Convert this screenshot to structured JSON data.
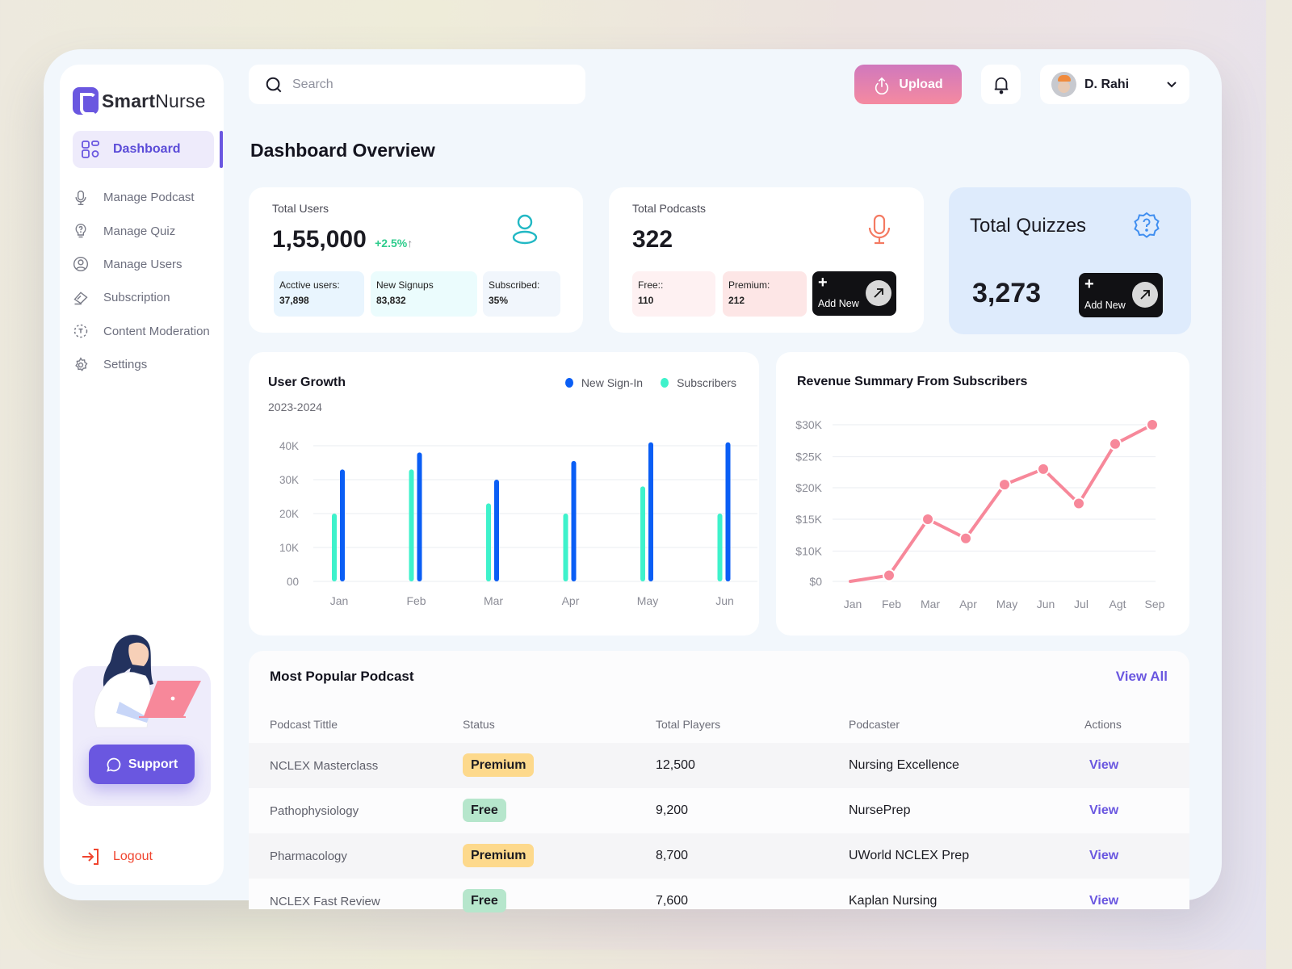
{
  "app": {
    "brand_bold": "Smart",
    "brand_light": "Nurse"
  },
  "sidebar": {
    "active": {
      "label": "Dashboard",
      "icon": "grid-icon"
    },
    "items": [
      {
        "label": "Manage Podcast",
        "icon": "microphone-icon"
      },
      {
        "label": "Manage Quiz",
        "icon": "lightbulb-question-icon"
      },
      {
        "label": "Manage Users",
        "icon": "user-circle-icon"
      },
      {
        "label": "Subscription",
        "icon": "ticket-icon"
      },
      {
        "label": "Content Moderation",
        "icon": "moderation-icon"
      },
      {
        "label": "Settings",
        "icon": "gear-icon"
      }
    ],
    "support_label": "Support",
    "logout_label": "Logout"
  },
  "header": {
    "search_placeholder": "Search",
    "upload_label": "Upload",
    "user_name": "D. Rahi"
  },
  "page": {
    "title": "Dashboard Overview"
  },
  "stats": {
    "users": {
      "label": "Total Users",
      "value": "1,55,000",
      "trend": "+2.5%",
      "trend_arrow": "↑",
      "breakdown": [
        {
          "label": "Acctive users:",
          "value": "37,898",
          "color": "#e9f5fe"
        },
        {
          "label": "New Signups",
          "value": "83,832",
          "color": "#ebfcfd"
        },
        {
          "label": "Subscribed:",
          "value": "35%",
          "color": "#f1f6fc"
        }
      ]
    },
    "podcasts": {
      "label": "Total Podcasts",
      "value": "322",
      "breakdown": [
        {
          "label": "Free::",
          "value": "110",
          "color": "#fef1f2"
        },
        {
          "label": "Premium:",
          "value": "212",
          "color": "#fde6e6"
        }
      ],
      "add_label": "Add New"
    },
    "quizzes": {
      "label": "Total Quizzes",
      "value": "3,273",
      "add_label": "Add New"
    }
  },
  "colors": {
    "accent": "#6a57e0",
    "new_signin": "#0a5ef5",
    "subscribers": "#3ef2cb",
    "revenue_line": "#f7889a",
    "logout": "#f0452f"
  },
  "chart_data": [
    {
      "type": "bar",
      "title": "User Growth",
      "subtitle": "2023-2024",
      "categories": [
        "Jan",
        "Feb",
        "Mar",
        "Apr",
        "May",
        "Jun"
      ],
      "series": [
        {
          "name": "Subscribers",
          "values": [
            20000,
            33000,
            23000,
            20000,
            28000,
            20000
          ]
        },
        {
          "name": "New Sign-In",
          "values": [
            33000,
            38000,
            30000,
            35500,
            41000,
            41000
          ]
        }
      ],
      "yticks": [
        "00",
        "10K",
        "20K",
        "30K",
        "40K"
      ],
      "ylim": [
        0,
        40000
      ],
      "legend": [
        "New Sign-In",
        "Subscribers"
      ],
      "legend_position": "top-right",
      "grid": true
    },
    {
      "type": "line",
      "title": "Revenue Summary From Subscribers",
      "categories": [
        "Jan",
        "Feb",
        "Mar",
        "Apr",
        "May",
        "Jun",
        "Jul",
        "Agt",
        "Sep"
      ],
      "series": [
        {
          "name": "Revenue",
          "values": [
            0,
            2000,
            15000,
            12000,
            20500,
            23000,
            17500,
            27000,
            30000
          ]
        }
      ],
      "yticks": [
        "$0",
        "$10K",
        "$15K",
        "$20K",
        "$25K",
        "$30K"
      ],
      "ylim": [
        0,
        30000
      ],
      "grid": true
    }
  ],
  "table": {
    "title": "Most Popular Podcast",
    "view_all": "View All",
    "columns": [
      "Podcast Tittle",
      "Status",
      "Total Players",
      "Podcaster",
      "Actions"
    ],
    "rows": [
      {
        "title": "NCLEX Masterclass",
        "status": "Premium",
        "players": "12,500",
        "podcaster": "Nursing Excellence",
        "action": "View"
      },
      {
        "title": "Pathophysiology",
        "status": "Free",
        "players": "9,200",
        "podcaster": "NursePrep",
        "action": "View"
      },
      {
        "title": "Pharmacology",
        "status": "Premium",
        "players": "8,700",
        "podcaster": "UWorld NCLEX Prep",
        "action": "View"
      },
      {
        "title": "NCLEX Fast Review",
        "status": "Free",
        "players": "7,600",
        "podcaster": "Kaplan Nursing",
        "action": "View"
      }
    ]
  }
}
